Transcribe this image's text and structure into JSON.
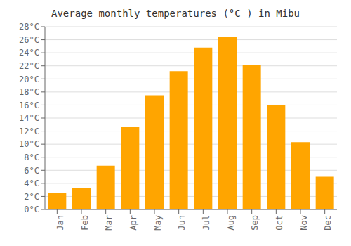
{
  "chart_data": {
    "type": "bar",
    "title": "Average monthly temperatures (°C ) in Mibu",
    "categories": [
      "Jan",
      "Feb",
      "Mar",
      "Apr",
      "May",
      "Jun",
      "Jul",
      "Aug",
      "Sep",
      "Oct",
      "Nov",
      "Dec"
    ],
    "values": [
      2.5,
      3.3,
      6.7,
      12.7,
      17.5,
      21.2,
      24.8,
      26.5,
      22.1,
      16.0,
      10.3,
      5.0
    ],
    "color": "#FFA500",
    "ylim": [
      0,
      28
    ],
    "yticks": [
      {
        "value": 0,
        "label": "0°C"
      },
      {
        "value": 2,
        "label": "2°C"
      },
      {
        "value": 4,
        "label": "4°C"
      },
      {
        "value": 6,
        "label": "6°C"
      },
      {
        "value": 8,
        "label": "8°C"
      },
      {
        "value": 10,
        "label": "10°C"
      },
      {
        "value": 12,
        "label": "12°C"
      },
      {
        "value": 14,
        "label": "14°C"
      },
      {
        "value": 16,
        "label": "16°C"
      },
      {
        "value": 18,
        "label": "18°C"
      },
      {
        "value": 20,
        "label": "20°C"
      },
      {
        "value": 22,
        "label": "22°C"
      },
      {
        "value": 24,
        "label": "24°C"
      },
      {
        "value": 26,
        "label": "26°C"
      },
      {
        "value": 28,
        "label": "28°C"
      }
    ],
    "grid": true
  }
}
